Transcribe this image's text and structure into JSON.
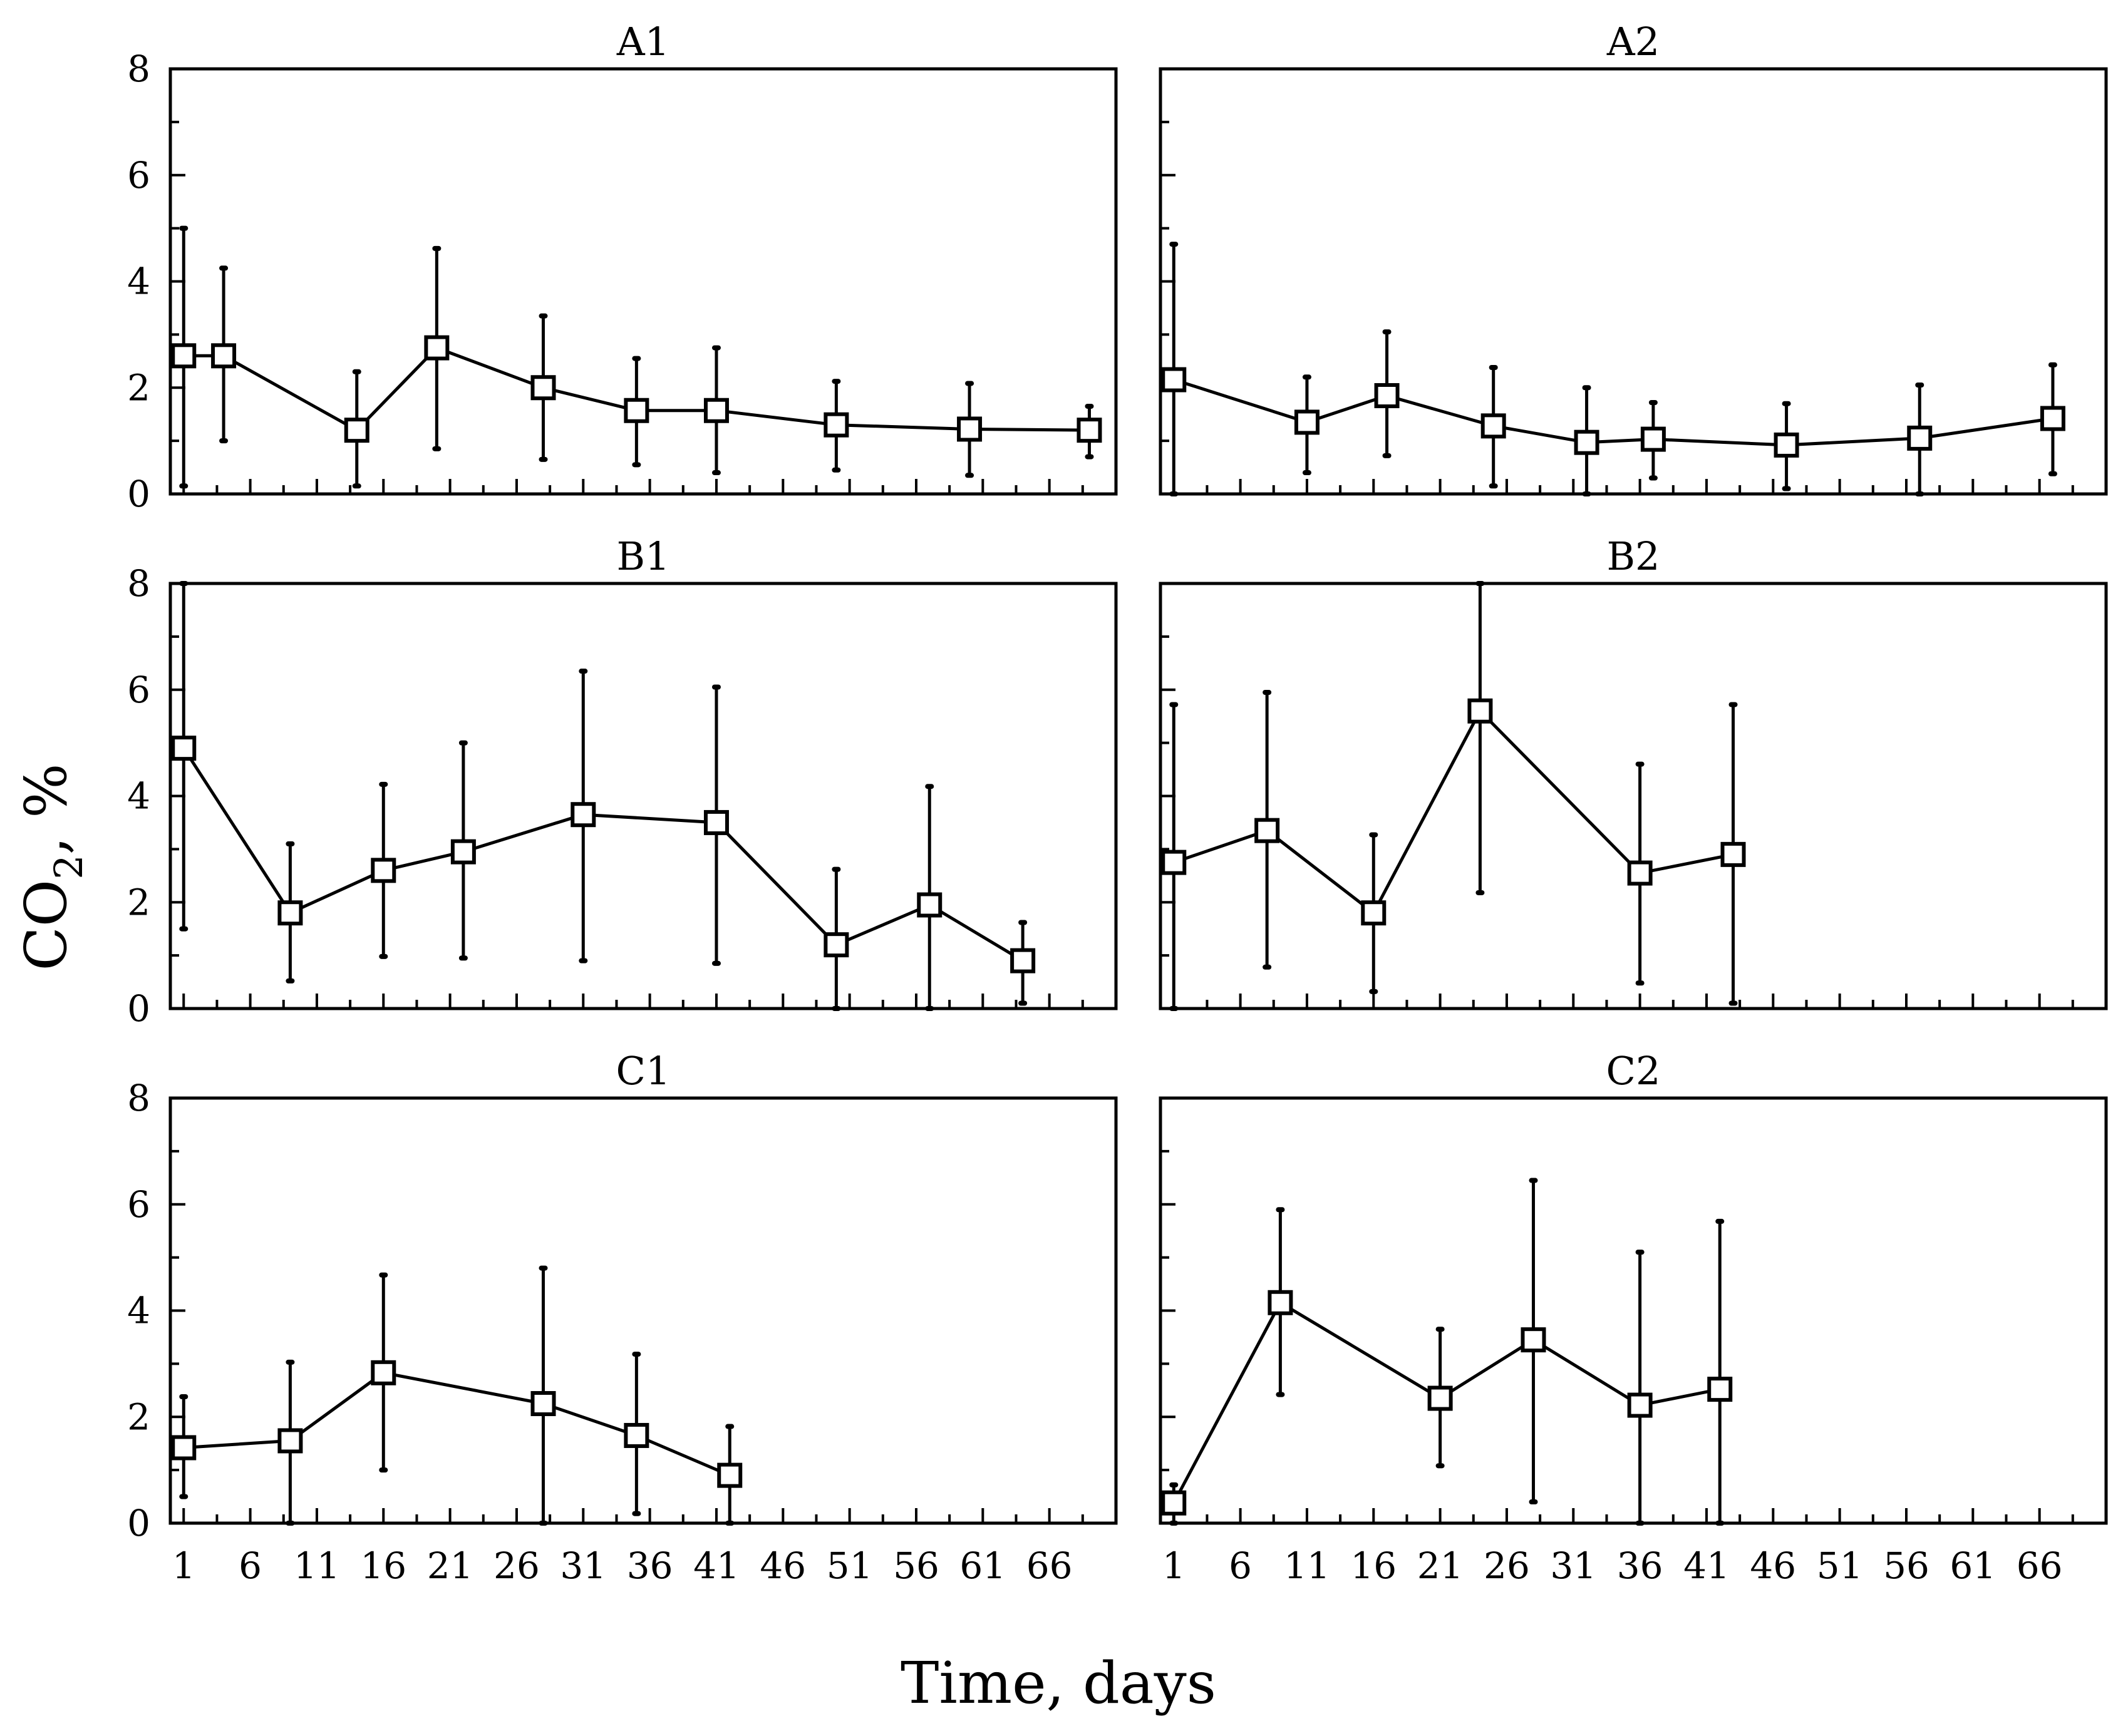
{
  "chart_data": {
    "type": "line",
    "layout": "3x2 panels",
    "xlabel": "Time, days",
    "ylabel_main": "CO",
    "ylabel_sub": "2",
    "ylabel_rest": ", %",
    "x_ticks": [
      "1",
      "6",
      "11",
      "16",
      "21",
      "26",
      "31",
      "36",
      "41",
      "46",
      "51",
      "56",
      "61",
      "66"
    ],
    "y_ticks": [
      "0",
      "2",
      "4",
      "6",
      "8"
    ],
    "xlim": [
      0,
      71
    ],
    "ylim": [
      0,
      8
    ],
    "panels": [
      {
        "title": "A1",
        "x": [
          1,
          4,
          14,
          20,
          28,
          35,
          41,
          50,
          60,
          69
        ],
        "y": [
          2.6,
          2.6,
          1.2,
          2.75,
          2.0,
          1.57,
          1.57,
          1.3,
          1.22,
          1.2
        ],
        "err_low": [
          0.15,
          1.0,
          0.15,
          0.85,
          0.65,
          0.55,
          0.4,
          0.45,
          0.35,
          0.7
        ],
        "err_high": [
          5.0,
          4.25,
          2.3,
          4.62,
          3.35,
          2.55,
          2.75,
          2.12,
          2.08,
          1.65
        ]
      },
      {
        "title": "A2",
        "x": [
          1,
          11,
          17,
          25,
          32,
          37,
          47,
          57,
          67
        ],
        "y": [
          2.15,
          1.35,
          1.85,
          1.28,
          0.97,
          1.03,
          0.92,
          1.05,
          1.42
        ],
        "err_low": [
          0.0,
          0.4,
          0.72,
          0.15,
          0.0,
          0.3,
          0.1,
          0.0,
          0.38
        ],
        "err_high": [
          4.7,
          2.2,
          3.05,
          2.38,
          2.0,
          1.72,
          1.7,
          2.05,
          2.43
        ]
      },
      {
        "title": "B1",
        "x": [
          1,
          9,
          16,
          22,
          31,
          41,
          50,
          57,
          64
        ],
        "y": [
          4.9,
          1.8,
          2.6,
          2.95,
          3.65,
          3.5,
          1.2,
          1.95,
          0.9
        ],
        "err_low": [
          1.5,
          0.52,
          0.98,
          0.95,
          0.9,
          0.85,
          0.0,
          0.0,
          0.1
        ],
        "err_high": [
          8.2,
          3.1,
          4.22,
          5.0,
          6.35,
          6.05,
          2.62,
          4.18,
          1.62
        ]
      },
      {
        "title": "B2",
        "x": [
          1,
          8,
          16,
          24,
          36,
          43
        ],
        "y": [
          2.75,
          3.35,
          1.8,
          5.6,
          2.55,
          2.9
        ],
        "err_low": [
          0.0,
          0.78,
          0.32,
          2.18,
          0.48,
          0.1
        ],
        "err_high": [
          5.72,
          5.95,
          3.27,
          8.2,
          4.6,
          5.72
        ]
      },
      {
        "title": "C1",
        "x": [
          1,
          9,
          16,
          28,
          35,
          42
        ],
        "y": [
          1.42,
          1.55,
          2.83,
          2.25,
          1.65,
          0.9
        ],
        "err_low": [
          0.5,
          0.0,
          1.0,
          0.0,
          0.18,
          0.0
        ],
        "err_high": [
          2.38,
          3.03,
          4.67,
          4.8,
          3.18,
          1.82
        ]
      },
      {
        "title": "C2",
        "x": [
          1,
          9,
          21,
          28,
          36,
          42
        ],
        "y": [
          0.38,
          4.15,
          2.35,
          3.45,
          2.22,
          2.52
        ],
        "err_low": [
          0.0,
          2.42,
          1.08,
          0.4,
          0.0,
          0.0
        ],
        "err_high": [
          0.72,
          5.9,
          3.65,
          6.45,
          5.1,
          5.68
        ]
      }
    ]
  }
}
